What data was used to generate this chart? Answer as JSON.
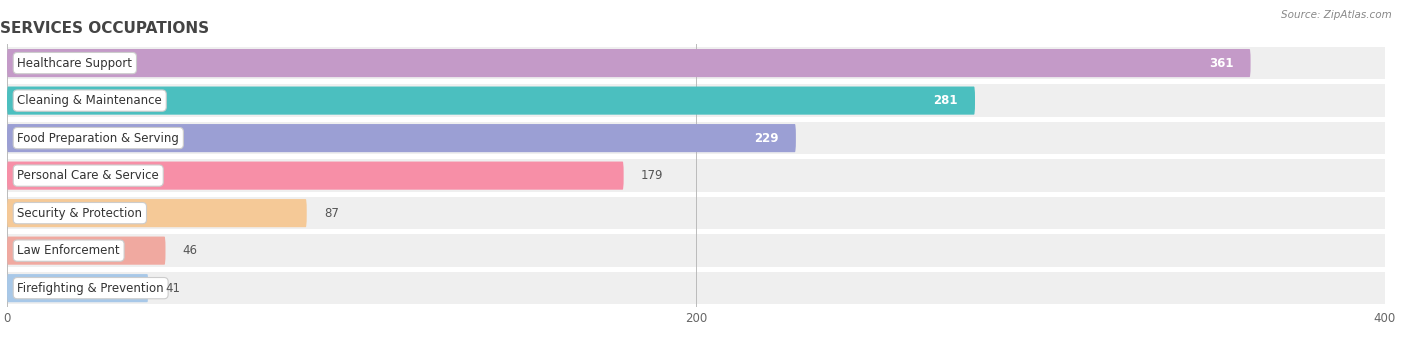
{
  "title": "SERVICES OCCUPATIONS",
  "source_text": "Source: ZipAtlas.com",
  "categories": [
    "Healthcare Support",
    "Cleaning & Maintenance",
    "Food Preparation & Serving",
    "Personal Care & Service",
    "Security & Protection",
    "Law Enforcement",
    "Firefighting & Prevention"
  ],
  "values": [
    361,
    281,
    229,
    179,
    87,
    46,
    41
  ],
  "bar_colors": [
    "#c49ac8",
    "#4bbfbf",
    "#9b9fd4",
    "#f78fa7",
    "#f5c997",
    "#f0a9a0",
    "#a8c8e8"
  ],
  "xlim": [
    0,
    400
  ],
  "xticks": [
    0,
    200,
    400
  ],
  "title_fontsize": 11,
  "label_fontsize": 8.5,
  "value_fontsize": 8.5,
  "background_color": "#ffffff",
  "bar_height": 0.75,
  "row_bg_color": "#efefef",
  "row_sep_color": "#ffffff"
}
